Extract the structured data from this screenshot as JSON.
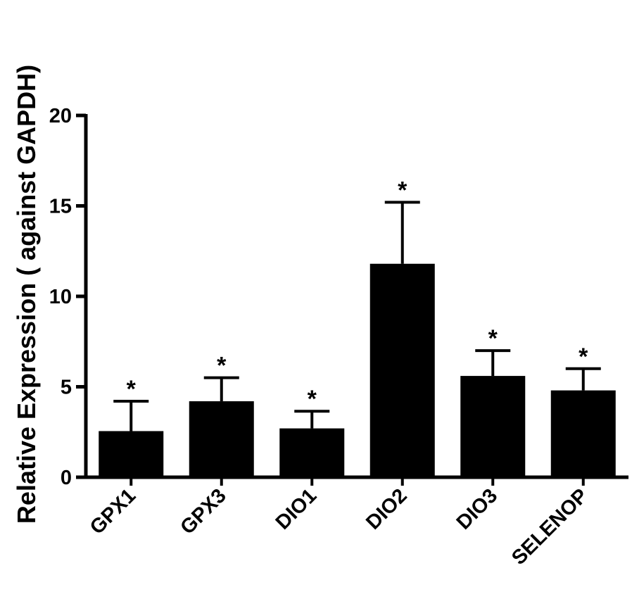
{
  "chart_data": {
    "type": "bar",
    "title": "",
    "xlabel": "",
    "ylabel": "Relative Expression ( against GAPDH)",
    "ylim": [
      0,
      20
    ],
    "yticks": [
      0,
      5,
      10,
      15,
      20
    ],
    "grid": false,
    "categories": [
      "GPX1",
      "GPX3",
      "DIO1",
      "DIO2",
      "DIO3",
      "SELENOP"
    ],
    "values": [
      2.55,
      4.2,
      2.7,
      11.8,
      5.6,
      4.8
    ],
    "errors": [
      1.65,
      1.3,
      0.95,
      3.4,
      1.4,
      1.2
    ],
    "significance": [
      "*",
      "*",
      "*",
      "*",
      "*",
      "*"
    ],
    "bar_color": "#000000"
  }
}
